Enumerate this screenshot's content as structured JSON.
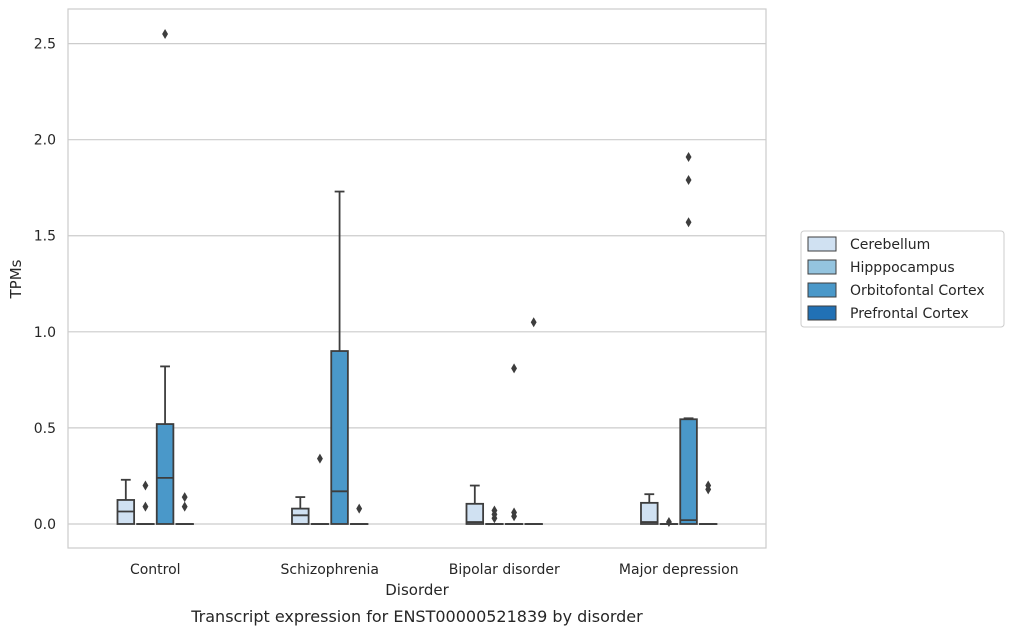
{
  "caption": "Transcript expression for ENST00000521839 by disorder",
  "chart_data": {
    "type": "box",
    "title": "",
    "xlabel": "Disorder",
    "ylabel": "TPMs",
    "ylim": [
      -0.125,
      2.68
    ],
    "yticks": [
      "0.0",
      "0.5",
      "1.0",
      "1.5",
      "2.0",
      "2.5"
    ],
    "grid": true,
    "legend_placement": "right",
    "categories": [
      "Control",
      "Schizophrenia",
      "Bipolar disorder",
      "Major depression"
    ],
    "series": [
      {
        "name": "Cerebellum",
        "color": "#d0e1f2",
        "boxes": [
          {
            "q1": 0.0,
            "median": 0.065,
            "q3": 0.125,
            "whislo": 0.0,
            "whishi": 0.23,
            "fliers": []
          },
          {
            "q1": 0.0,
            "median": 0.045,
            "q3": 0.08,
            "whislo": 0.0,
            "whishi": 0.14,
            "fliers": []
          },
          {
            "q1": 0.0,
            "median": 0.01,
            "q3": 0.105,
            "whislo": 0.0,
            "whishi": 0.2,
            "fliers": []
          },
          {
            "q1": 0.0,
            "median": 0.01,
            "q3": 0.11,
            "whislo": 0.0,
            "whishi": 0.155,
            "fliers": []
          }
        ]
      },
      {
        "name": "Hipppocampus",
        "color": "#94c4df",
        "boxes": [
          {
            "q1": 0.0,
            "median": 0.0,
            "q3": 0.0,
            "whislo": 0.0,
            "whishi": 0.0,
            "fliers": [
              0.09,
              0.2
            ]
          },
          {
            "q1": 0.0,
            "median": 0.0,
            "q3": 0.0,
            "whislo": 0.0,
            "whishi": 0.0,
            "fliers": [
              0.34
            ]
          },
          {
            "q1": 0.0,
            "median": 0.0,
            "q3": 0.0,
            "whislo": 0.0,
            "whishi": 0.0,
            "fliers": [
              0.03,
              0.05,
              0.07
            ]
          },
          {
            "q1": 0.0,
            "median": 0.0,
            "q3": 0.0,
            "whislo": 0.0,
            "whishi": 0.0,
            "fliers": [
              0.01
            ]
          }
        ]
      },
      {
        "name": "Orbitofontal Cortex",
        "color": "#4a98c9",
        "boxes": [
          {
            "q1": 0.0,
            "median": 0.24,
            "q3": 0.52,
            "whislo": 0.0,
            "whishi": 0.82,
            "fliers": [
              2.55
            ]
          },
          {
            "q1": 0.0,
            "median": 0.17,
            "q3": 0.9,
            "whislo": 0.0,
            "whishi": 1.73,
            "fliers": []
          },
          {
            "q1": 0.0,
            "median": 0.0,
            "q3": 0.0,
            "whislo": 0.0,
            "whishi": 0.0,
            "fliers": [
              0.04,
              0.06,
              0.81
            ]
          },
          {
            "q1": 0.0,
            "median": 0.02,
            "q3": 0.545,
            "whislo": 0.0,
            "whishi": 0.55,
            "fliers": [
              1.57,
              1.79,
              1.91
            ]
          }
        ]
      },
      {
        "name": "Prefrontal Cortex",
        "color": "#2171b5",
        "boxes": [
          {
            "q1": 0.0,
            "median": 0.0,
            "q3": 0.0,
            "whislo": 0.0,
            "whishi": 0.0,
            "fliers": [
              0.09,
              0.14
            ]
          },
          {
            "q1": 0.0,
            "median": 0.0,
            "q3": 0.0,
            "whislo": 0.0,
            "whishi": 0.0,
            "fliers": [
              0.08
            ]
          },
          {
            "q1": 0.0,
            "median": 0.0,
            "q3": 0.0,
            "whislo": 0.0,
            "whishi": 0.0,
            "fliers": [
              1.05
            ]
          },
          {
            "q1": 0.0,
            "median": 0.0,
            "q3": 0.0,
            "whislo": 0.0,
            "whishi": 0.0,
            "fliers": [
              0.18,
              0.2
            ]
          }
        ]
      }
    ]
  }
}
